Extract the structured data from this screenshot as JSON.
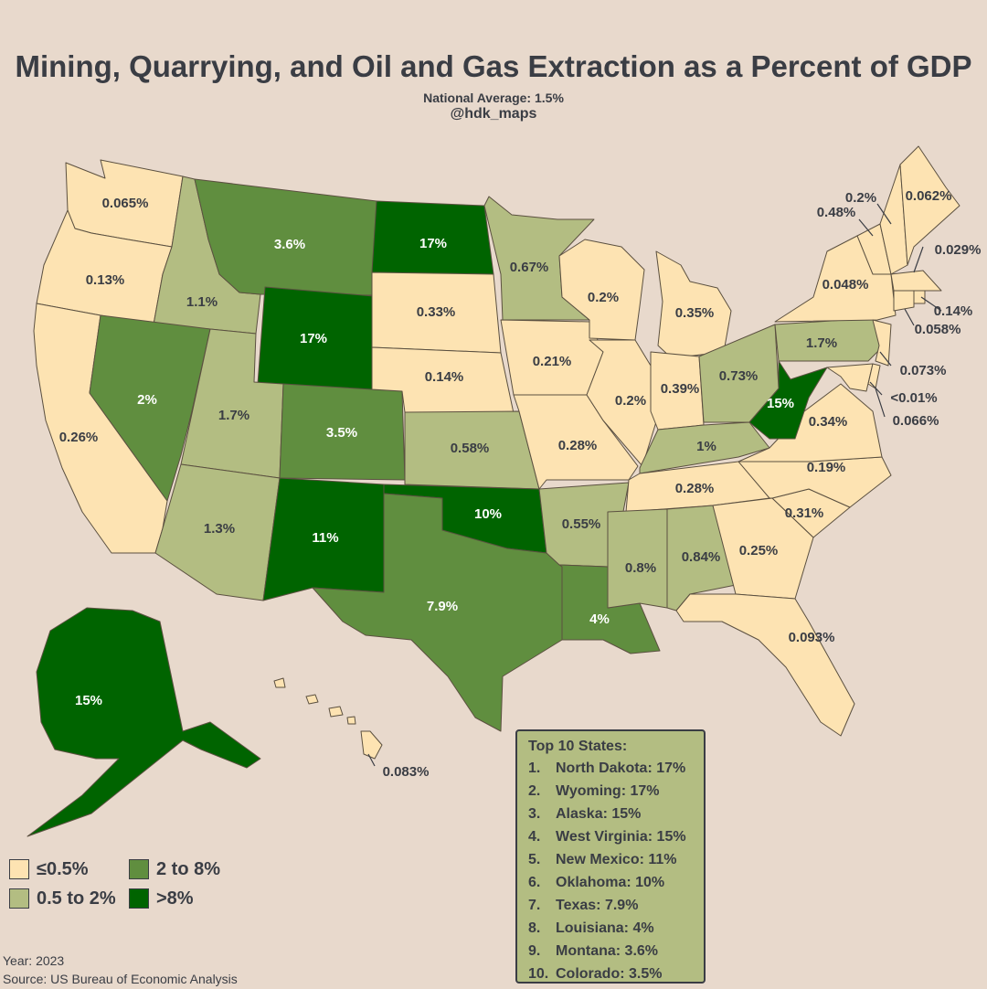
{
  "title": "Mining, Quarrying, and Oil and Gas Extraction as a Percent of GDP",
  "subtitle": "National Average: 1.5%",
  "handle": "@hdk_maps",
  "colors": {
    "background": "#e8d9cc",
    "low": "#fde3b2",
    "mid_low": "#b3bd82",
    "mid_high": "#608e3f",
    "high": "#006400",
    "text": "#3a3d44"
  },
  "legend": [
    {
      "label": "≤0.5%",
      "color": "#fde3b2"
    },
    {
      "label": "2 to 8%",
      "color": "#608e3f"
    },
    {
      "label": "0.5 to 2%",
      "color": "#b3bd82"
    },
    {
      "label": ">8%",
      "color": "#006400"
    }
  ],
  "states": [
    {
      "name": "Washington",
      "value_label": "0.065%",
      "category": "low"
    },
    {
      "name": "Oregon",
      "value_label": "0.13%",
      "category": "low"
    },
    {
      "name": "California",
      "value_label": "0.26%",
      "category": "low"
    },
    {
      "name": "Idaho",
      "value_label": "1.1%",
      "category": "mid_low"
    },
    {
      "name": "Nevada",
      "value_label": "2%",
      "category": "mid_high"
    },
    {
      "name": "Montana",
      "value_label": "3.6%",
      "category": "mid_high"
    },
    {
      "name": "Wyoming",
      "value_label": "17%",
      "category": "high"
    },
    {
      "name": "Utah",
      "value_label": "1.7%",
      "category": "mid_low"
    },
    {
      "name": "Arizona",
      "value_label": "1.3%",
      "category": "mid_low"
    },
    {
      "name": "Colorado",
      "value_label": "3.5%",
      "category": "mid_high"
    },
    {
      "name": "New Mexico",
      "value_label": "11%",
      "category": "high"
    },
    {
      "name": "North Dakota",
      "value_label": "17%",
      "category": "high"
    },
    {
      "name": "South Dakota",
      "value_label": "0.33%",
      "category": "low"
    },
    {
      "name": "Nebraska",
      "value_label": "0.14%",
      "category": "low"
    },
    {
      "name": "Kansas",
      "value_label": "0.58%",
      "category": "mid_low"
    },
    {
      "name": "Oklahoma",
      "value_label": "10%",
      "category": "high"
    },
    {
      "name": "Texas",
      "value_label": "7.9%",
      "category": "mid_high"
    },
    {
      "name": "Minnesota",
      "value_label": "0.67%",
      "category": "mid_low"
    },
    {
      "name": "Iowa",
      "value_label": "0.21%",
      "category": "low"
    },
    {
      "name": "Missouri",
      "value_label": "0.28%",
      "category": "low"
    },
    {
      "name": "Arkansas",
      "value_label": "0.55%",
      "category": "mid_low"
    },
    {
      "name": "Louisiana",
      "value_label": "4%",
      "category": "mid_high"
    },
    {
      "name": "Wisconsin",
      "value_label": "0.2%",
      "category": "low"
    },
    {
      "name": "Illinois",
      "value_label": "0.2%",
      "category": "low"
    },
    {
      "name": "Michigan",
      "value_label": "0.35%",
      "category": "low"
    },
    {
      "name": "Indiana",
      "value_label": "0.39%",
      "category": "low"
    },
    {
      "name": "Ohio",
      "value_label": "0.73%",
      "category": "mid_low"
    },
    {
      "name": "Kentucky",
      "value_label": "1%",
      "category": "mid_low"
    },
    {
      "name": "Tennessee",
      "value_label": "0.28%",
      "category": "low"
    },
    {
      "name": "Mississippi",
      "value_label": "0.8%",
      "category": "mid_low"
    },
    {
      "name": "Alabama",
      "value_label": "0.84%",
      "category": "mid_low"
    },
    {
      "name": "Georgia",
      "value_label": "0.25%",
      "category": "low"
    },
    {
      "name": "Florida",
      "value_label": "0.093%",
      "category": "low"
    },
    {
      "name": "South Carolina",
      "value_label": "0.31%",
      "category": "low"
    },
    {
      "name": "North Carolina",
      "value_label": "0.19%",
      "category": "low"
    },
    {
      "name": "Virginia",
      "value_label": "0.34%",
      "category": "low"
    },
    {
      "name": "West Virginia",
      "value_label": "15%",
      "category": "high"
    },
    {
      "name": "Pennsylvania",
      "value_label": "1.7%",
      "category": "mid_low"
    },
    {
      "name": "New York",
      "value_label": "0.048%",
      "category": "low"
    },
    {
      "name": "Vermont",
      "value_label": "0.48%",
      "category": "low"
    },
    {
      "name": "New Hampshire",
      "value_label": "0.2%",
      "category": "low"
    },
    {
      "name": "Maine",
      "value_label": "0.062%",
      "category": "low"
    },
    {
      "name": "Massachusetts",
      "value_label": "0.029%",
      "category": "low"
    },
    {
      "name": "Rhode Island",
      "value_label": "0.14%",
      "category": "low"
    },
    {
      "name": "Connecticut",
      "value_label": "0.058%",
      "category": "low"
    },
    {
      "name": "New Jersey",
      "value_label": "0.073%",
      "category": "low"
    },
    {
      "name": "Maryland",
      "value_label": "<0.01%",
      "category": "low"
    },
    {
      "name": "Delaware",
      "value_label": "0.066%",
      "category": "low"
    },
    {
      "name": "Alaska",
      "value_label": "15%",
      "category": "high"
    },
    {
      "name": "Hawaii",
      "value_label": "0.083%",
      "category": "low"
    }
  ],
  "top10": {
    "heading": "Top 10 States:",
    "items": [
      {
        "rank": "1.",
        "text": "North Dakota: 17%"
      },
      {
        "rank": "2.",
        "text": "Wyoming: 17%"
      },
      {
        "rank": "3.",
        "text": "Alaska: 15%"
      },
      {
        "rank": "4.",
        "text": "West Virginia: 15%"
      },
      {
        "rank": "5.",
        "text": "New Mexico: 11%"
      },
      {
        "rank": "6.",
        "text": "Oklahoma: 10%"
      },
      {
        "rank": "7.",
        "text": "Texas: 7.9%"
      },
      {
        "rank": "8.",
        "text": "Louisiana: 4%"
      },
      {
        "rank": "9.",
        "text": "Montana: 3.6%"
      },
      {
        "rank": "10.",
        "text": "Colorado: 3.5%"
      }
    ]
  },
  "footer": {
    "year": "Year: 2023",
    "source": "Source: US Bureau of Economic Analysis"
  }
}
